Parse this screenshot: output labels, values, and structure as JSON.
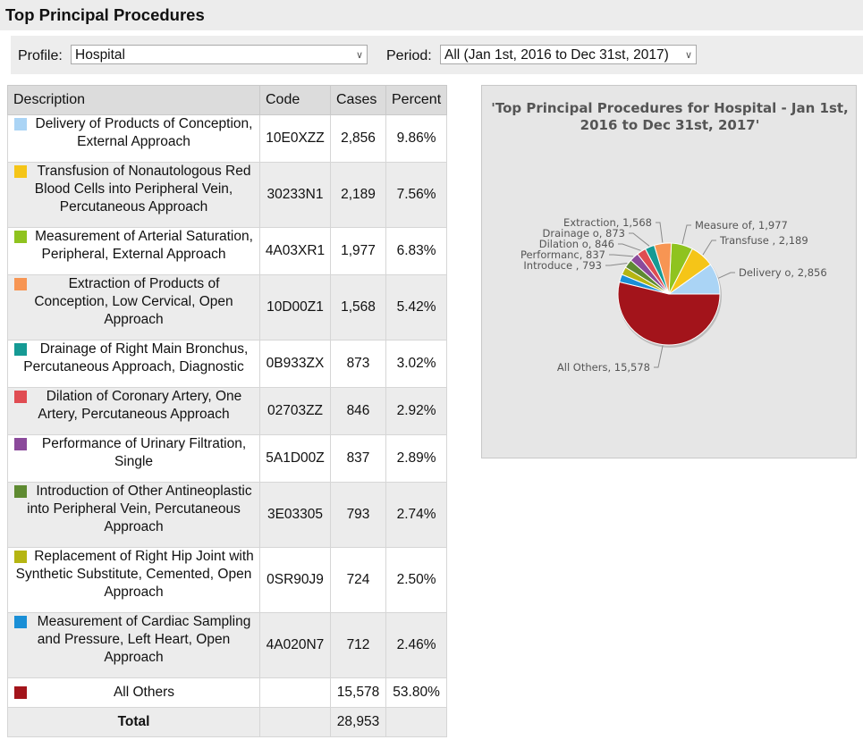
{
  "page_title": "Top Principal Procedures",
  "filters": {
    "profile_label": "Profile:",
    "profile_value": "Hospital",
    "period_label": "Period:",
    "period_value": "All (Jan 1st, 2016 to Dec 31st, 2017)"
  },
  "table": {
    "headers": [
      "Description",
      "Code",
      "Cases",
      "Percent"
    ],
    "rows": [
      {
        "description": "Delivery of Products of Conception, External Approach",
        "code": "10E0XZZ",
        "cases": "2,856",
        "percent": "9.86%",
        "color": "#aad4f5"
      },
      {
        "description": "Transfusion of Nonautologous Red Blood Cells into Peripheral Vein, Percutaneous Approach",
        "code": "30233N1",
        "cases": "2,189",
        "percent": "7.56%",
        "color": "#f5c518"
      },
      {
        "description": "Measurement of Arterial Saturation, Peripheral, External Approach",
        "code": "4A03XR1",
        "cases": "1,977",
        "percent": "6.83%",
        "color": "#8fc31f"
      },
      {
        "description": "Extraction of Products of Conception, Low Cervical, Open Approach",
        "code": "10D00Z1",
        "cases": "1,568",
        "percent": "5.42%",
        "color": "#f79553"
      },
      {
        "description": "Drainage of Right Main Bronchus, Percutaneous Approach, Diagnostic",
        "code": "0B933ZX",
        "cases": "873",
        "percent": "3.02%",
        "color": "#159a94"
      },
      {
        "description": "Dilation of Coronary Artery, One Artery, Percutaneous Approach",
        "code": "02703ZZ",
        "cases": "846",
        "percent": "2.92%",
        "color": "#e04c52"
      },
      {
        "description": "Performance of Urinary Filtration, Single",
        "code": "5A1D00Z",
        "cases": "837",
        "percent": "2.89%",
        "color": "#8b4a9b"
      },
      {
        "description": "Introduction of Other Antineoplastic into Peripheral Vein, Percutaneous Approach",
        "code": "3E03305",
        "cases": "793",
        "percent": "2.74%",
        "color": "#5e8a31"
      },
      {
        "description": "Replacement of Right Hip Joint with Synthetic Substitute, Cemented, Open Approach",
        "code": "0SR90J9",
        "cases": "724",
        "percent": "2.50%",
        "color": "#b5b512"
      },
      {
        "description": "Measurement of Cardiac Sampling and Pressure, Left Heart, Open Approach",
        "code": "4A020N7",
        "cases": "712",
        "percent": "2.46%",
        "color": "#1a8fd6"
      },
      {
        "description": "All Others",
        "code": "",
        "cases": "15,578",
        "percent": "53.80%",
        "color": "#a3141b"
      }
    ],
    "total_label": "Total",
    "total_cases": "28,953"
  },
  "chart_data": {
    "type": "pie",
    "title": "'Top Principal Procedures for Hospital - Jan 1st, 2016 to Dec 31st, 2017'",
    "slices": [
      {
        "label": "Delivery o",
        "value": 2856,
        "color": "#aad4f5"
      },
      {
        "label": "Transfuse ",
        "value": 2189,
        "color": "#f5c518"
      },
      {
        "label": "Measure of",
        "value": 1977,
        "color": "#8fc31f"
      },
      {
        "label": "Extraction",
        "value": 1568,
        "color": "#f79553"
      },
      {
        "label": "Drainage o",
        "value": 873,
        "color": "#159a94"
      },
      {
        "label": "Dilation o",
        "value": 846,
        "color": "#e04c52"
      },
      {
        "label": "Performanc",
        "value": 837,
        "color": "#8b4a9b"
      },
      {
        "label": "Introduce ",
        "value": 793,
        "color": "#5e8a31"
      },
      {
        "label": "",
        "value": 724,
        "color": "#b5b512"
      },
      {
        "label": "",
        "value": 712,
        "color": "#1a8fd6"
      },
      {
        "label": "All Others",
        "value": 15578,
        "color": "#a3141b"
      }
    ],
    "data_labels": [
      "Delivery o, 2,856",
      "Transfuse , 2,189",
      "Measure of, 1,977",
      "Extraction, 1,568",
      "Drainage o, 873",
      "Dilation o, 846",
      "Performanc, 837",
      "Introduce , 793",
      "All Others, 15,578"
    ]
  }
}
